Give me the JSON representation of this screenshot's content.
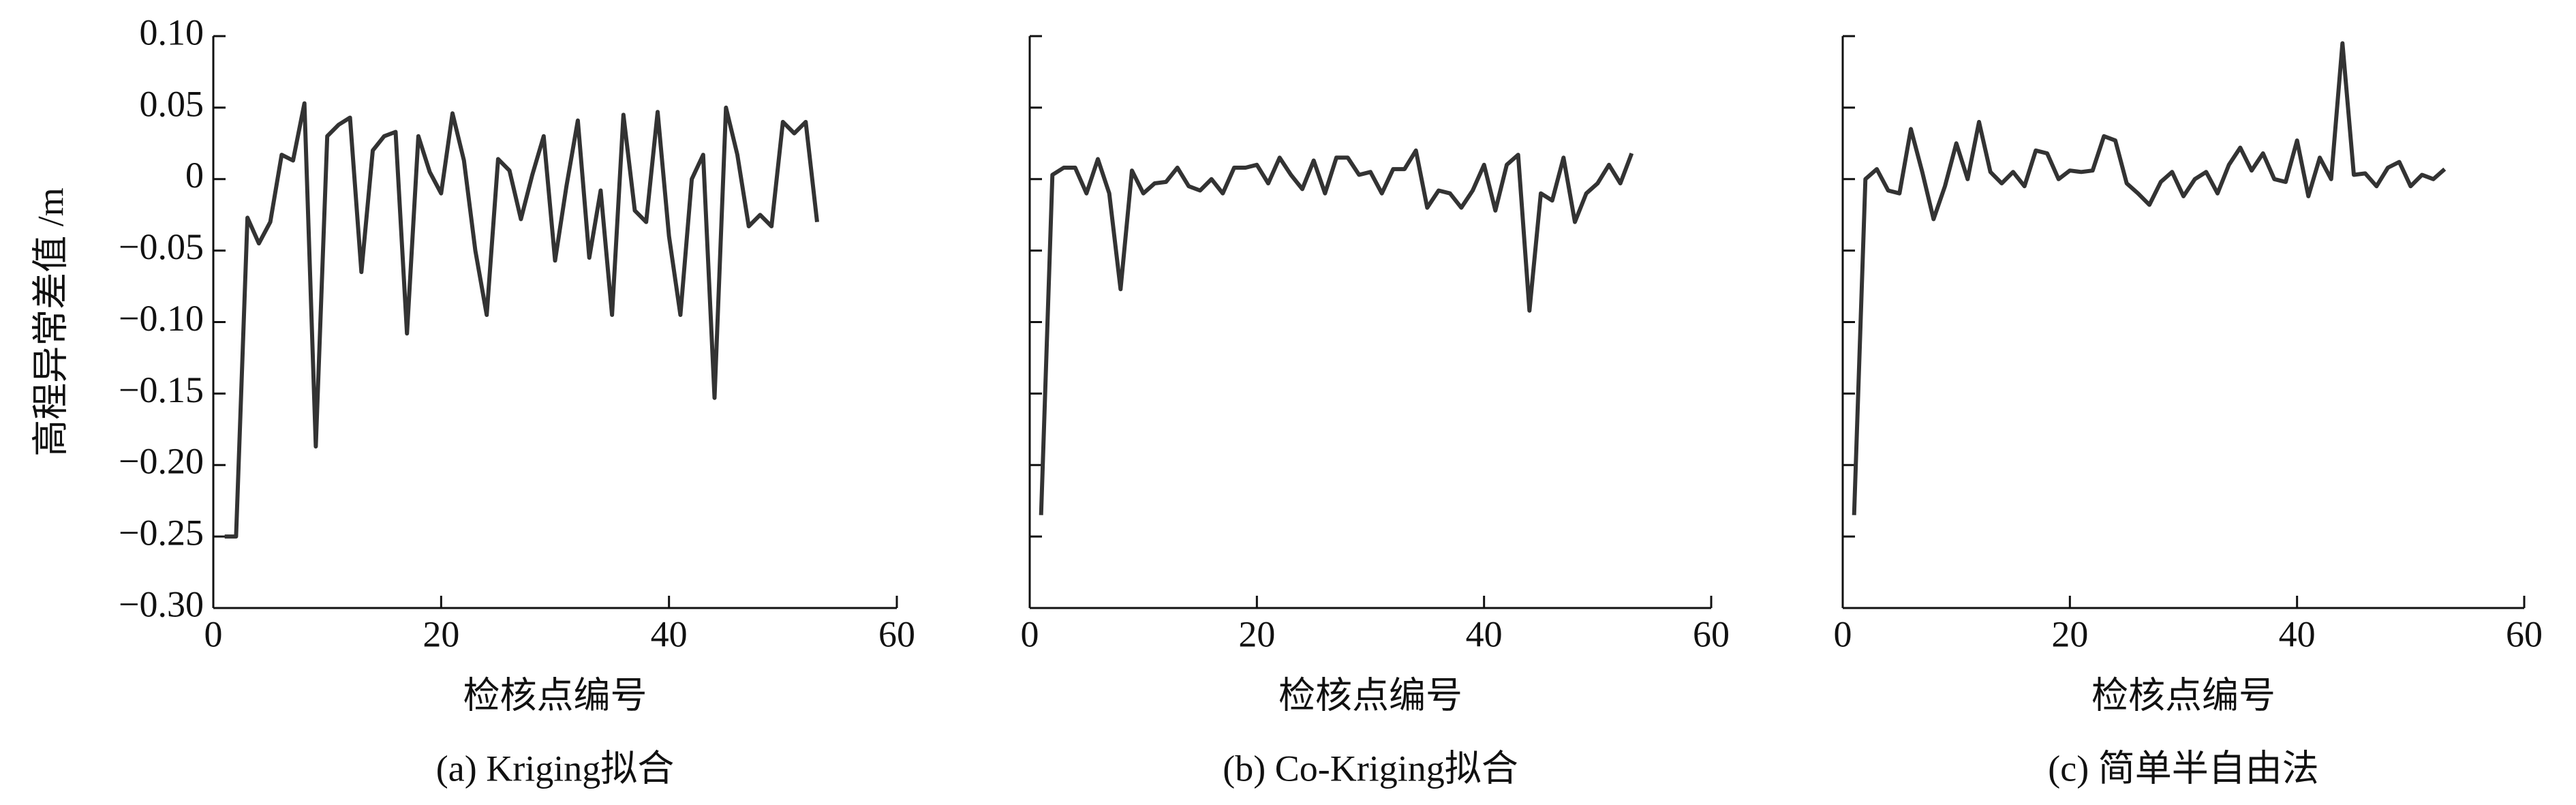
{
  "chart_data": [
    {
      "type": "line",
      "caption": "(a) Kriging拟合",
      "xlabel": "检核点编号",
      "ylabel": "高程异常差值 /m",
      "show_ytick_labels": true,
      "color": "#333333",
      "x": [
        1,
        2,
        3,
        4,
        5,
        6,
        7,
        8,
        9,
        10,
        11,
        12,
        13,
        14,
        15,
        16,
        17,
        18,
        19,
        20,
        21,
        22,
        23,
        24,
        25,
        26,
        27,
        28,
        29,
        30,
        31,
        32,
        33,
        34,
        35,
        36,
        37,
        38,
        39,
        40,
        41,
        42,
        43,
        44,
        45,
        46,
        47,
        48,
        49,
        50,
        51,
        52,
        53
      ],
      "values": [
        -0.25,
        -0.25,
        -0.027,
        -0.045,
        -0.03,
        0.017,
        0.013,
        0.053,
        -0.187,
        0.03,
        0.038,
        0.043,
        -0.065,
        0.02,
        0.03,
        0.033,
        -0.108,
        0.03,
        0.005,
        -0.01,
        0.046,
        0.013,
        -0.05,
        -0.095,
        0.014,
        0.006,
        -0.028,
        0.003,
        0.03,
        -0.057,
        -0.005,
        0.041,
        -0.055,
        -0.008,
        -0.095,
        0.045,
        -0.022,
        -0.03,
        0.047,
        -0.04,
        -0.095,
        0,
        0.017,
        -0.153,
        0.05,
        0.017,
        -0.033,
        -0.025,
        -0.033,
        0.04,
        0.032,
        0.04,
        -0.03
      ],
      "xlim": [
        0,
        60
      ],
      "xticks": [
        0,
        20,
        40,
        60
      ],
      "ylim": [
        -0.3,
        0.1
      ],
      "yticks": [
        {
          "value": 0.1,
          "label": "0.10"
        },
        {
          "value": 0.05,
          "label": "0.05"
        },
        0,
        {
          "value": -0.05,
          "label": "−0.05"
        },
        {
          "value": -0.1,
          "label": "−0.10"
        },
        {
          "value": -0.15,
          "label": "−0.15"
        },
        {
          "value": -0.2,
          "label": "−0.20"
        },
        {
          "value": -0.25,
          "label": "−0.25"
        },
        {
          "value": -0.3,
          "label": "−0.30"
        }
      ]
    },
    {
      "type": "line",
      "caption": "(b) Co-Kriging拟合",
      "xlabel": "检核点编号",
      "show_ytick_labels": false,
      "color": "#333333",
      "x": [
        1,
        2,
        3,
        4,
        5,
        6,
        7,
        8,
        9,
        10,
        11,
        12,
        13,
        14,
        15,
        16,
        17,
        18,
        19,
        20,
        21,
        22,
        23,
        24,
        25,
        26,
        27,
        28,
        29,
        30,
        31,
        32,
        33,
        34,
        35,
        36,
        37,
        38,
        39,
        40,
        41,
        42,
        43,
        44,
        45,
        46,
        47,
        48,
        49,
        50,
        51,
        52,
        53
      ],
      "values": [
        -0.235,
        0.003,
        0.008,
        0.008,
        -0.01,
        0.014,
        -0.01,
        -0.077,
        0.006,
        -0.01,
        -0.003,
        -0.002,
        0.008,
        -0.005,
        -0.008,
        0,
        -0.01,
        0.008,
        0.008,
        0.01,
        -0.003,
        0.015,
        0.003,
        -0.007,
        0.013,
        -0.01,
        0.015,
        0.015,
        0.003,
        0.005,
        -0.01,
        0.007,
        0.007,
        0.02,
        -0.02,
        -0.008,
        -0.01,
        -0.02,
        -0.008,
        0.01,
        -0.022,
        0.01,
        0.017,
        -0.092,
        -0.01,
        -0.015,
        0.015,
        -0.03,
        -0.01,
        -0.003,
        0.01,
        -0.003,
        0.018
      ],
      "xlim": [
        0,
        60
      ],
      "xticks": [
        0,
        20,
        40,
        60
      ],
      "ylim": [
        -0.3,
        0.1
      ],
      "yticks": [
        0.1,
        0.05,
        0,
        -0.05,
        -0.1,
        -0.15,
        -0.2,
        -0.25,
        -0.3
      ]
    },
    {
      "type": "line",
      "caption": "(c) 简单半自由法",
      "xlabel": "检核点编号",
      "show_ytick_labels": false,
      "color": "#333333",
      "x": [
        1,
        2,
        3,
        4,
        5,
        6,
        7,
        8,
        9,
        10,
        11,
        12,
        13,
        14,
        15,
        16,
        17,
        18,
        19,
        20,
        21,
        22,
        23,
        24,
        25,
        26,
        27,
        28,
        29,
        30,
        31,
        32,
        33,
        34,
        35,
        36,
        37,
        38,
        39,
        40,
        41,
        42,
        43,
        44,
        45,
        46,
        47,
        48,
        49,
        50,
        51,
        52,
        53
      ],
      "values": [
        -0.235,
        0,
        0.007,
        -0.008,
        -0.01,
        0.035,
        0.005,
        -0.028,
        -0.005,
        0.025,
        0,
        0.04,
        0.005,
        -0.003,
        0.005,
        -0.005,
        0.02,
        0.018,
        0,
        0.006,
        0.005,
        0.006,
        0.03,
        0.027,
        -0.003,
        -0.01,
        -0.018,
        -0.002,
        0.005,
        -0.012,
        0,
        0.005,
        -0.01,
        0.01,
        0.022,
        0.006,
        0.018,
        0,
        -0.002,
        0.027,
        -0.012,
        0.015,
        0,
        0.095,
        0.003,
        0.004,
        -0.005,
        0.008,
        0.012,
        -0.005,
        0.003,
        0,
        0.007
      ],
      "xlim": [
        0,
        60
      ],
      "xticks": [
        0,
        20,
        40,
        60
      ],
      "ylim": [
        -0.3,
        0.1
      ],
      "yticks": [
        0.1,
        0.05,
        0,
        -0.05,
        -0.1,
        -0.15,
        -0.2,
        -0.25,
        -0.3
      ]
    }
  ]
}
